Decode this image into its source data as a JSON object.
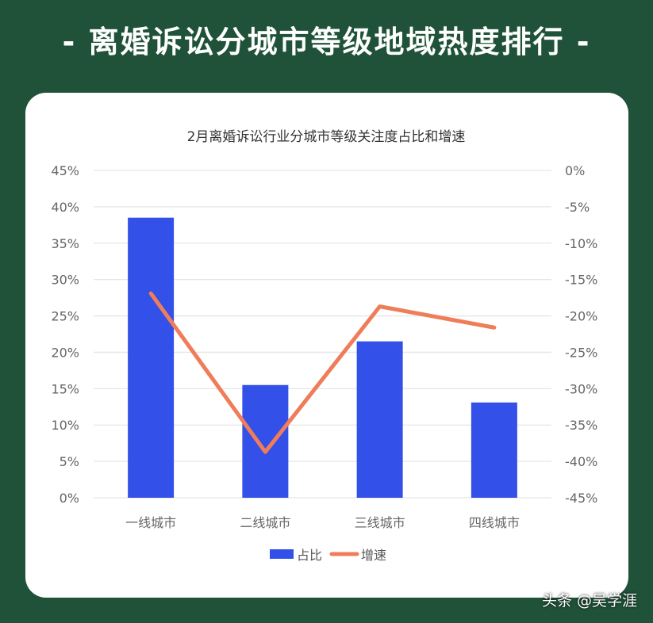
{
  "headline": "- 离婚诉讼分城市等级地域热度排行 -",
  "watermark": "头条 @吴学涯",
  "chart_data": {
    "type": "bar+line",
    "title": "2月离婚诉讼行业分城市等级关注度占比和增速",
    "categories": [
      "一线城市",
      "二线城市",
      "三线城市",
      "四线城市"
    ],
    "series": [
      {
        "name": "占比",
        "type": "bar",
        "axis": "left",
        "color": "#3350e8",
        "values": [
          38.5,
          15.5,
          21.5,
          13.1
        ]
      },
      {
        "name": "增速",
        "type": "line",
        "axis": "right",
        "color": "#ef7d5a",
        "values": [
          -16.9,
          -38.7,
          -18.7,
          -21.6
        ]
      }
    ],
    "left_axis": {
      "ylim": [
        0,
        45
      ],
      "ticks": [
        "0%",
        "5%",
        "10%",
        "15%",
        "20%",
        "25%",
        "30%",
        "35%",
        "40%",
        "45%"
      ]
    },
    "right_axis": {
      "ylim": [
        -45,
        0
      ],
      "ticks": [
        "-45%",
        "-40%",
        "-35%",
        "-30%",
        "-25%",
        "-20%",
        "-15%",
        "-10%",
        "-5%",
        "0%"
      ]
    },
    "grid": true,
    "legend": "bottom"
  }
}
